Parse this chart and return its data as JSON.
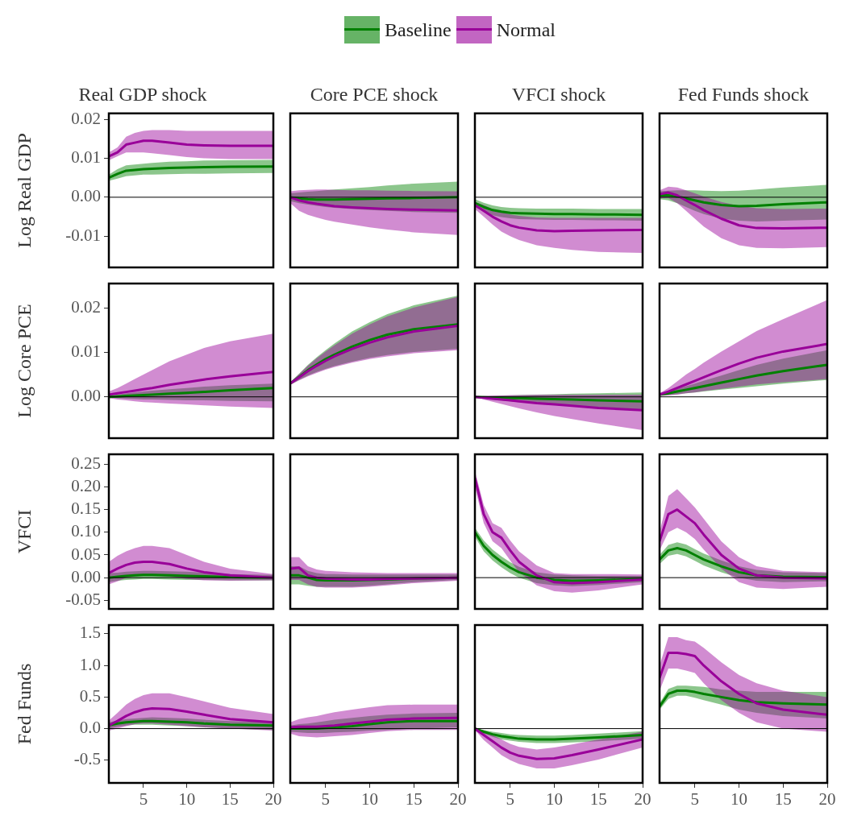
{
  "chart_data": [
    {
      "type": "line",
      "title": "Real GDP shock",
      "ylabel": "Log Real GDP",
      "legend": "top",
      "tick_labels": "y",
      "x": [
        1,
        2,
        3,
        4,
        5,
        6,
        8,
        10,
        12,
        15,
        20
      ],
      "xlim": [
        1,
        20
      ],
      "ylim": [
        -0.018,
        0.0215
      ],
      "yticks": [
        0.02,
        0.01,
        {
          "value": 0,
          "label": "0.00"
        },
        -0.01
      ],
      "ref_lines": [
        {
          "axis": "y",
          "value": 0
        }
      ],
      "marker": "none",
      "series": [
        {
          "name": "Baseline",
          "color": "#008000",
          "values": [
            0.005,
            0.006,
            0.0068,
            0.007,
            0.0072,
            0.0073,
            0.0075,
            0.0076,
            0.0077,
            0.0078,
            0.0079
          ],
          "lower": [
            0.0042,
            0.0048,
            0.0054,
            0.0056,
            0.0058,
            0.0058,
            0.0059,
            0.006,
            0.006,
            0.0061,
            0.0062
          ],
          "upper": [
            0.0058,
            0.0072,
            0.0082,
            0.0084,
            0.0086,
            0.0088,
            0.0091,
            0.0092,
            0.0094,
            0.0095,
            0.0096
          ]
        },
        {
          "name": "Normal",
          "color": "#990099",
          "values": [
            0.0105,
            0.0115,
            0.0135,
            0.014,
            0.0145,
            0.0145,
            0.014,
            0.0135,
            0.0133,
            0.0132,
            0.0132
          ],
          "lower": [
            0.0095,
            0.0105,
            0.0115,
            0.0115,
            0.0115,
            0.0113,
            0.0108,
            0.0103,
            0.01,
            0.0098,
            0.0098
          ],
          "upper": [
            0.0115,
            0.0128,
            0.0155,
            0.0165,
            0.017,
            0.0172,
            0.0172,
            0.017,
            0.017,
            0.017,
            0.017
          ]
        }
      ]
    },
    {
      "type": "line",
      "title": "Core PCE shock",
      "tick_labels": false,
      "x": [
        1,
        2,
        3,
        4,
        5,
        6,
        8,
        10,
        12,
        15,
        20
      ],
      "xlim": [
        1,
        20
      ],
      "ylim": [
        -0.018,
        0.0215
      ],
      "ref_lines": [
        {
          "axis": "y",
          "value": 0
        }
      ],
      "marker": "none",
      "series": [
        {
          "color": "#008000",
          "values": [
            0,
            -0.0003,
            -0.0005,
            -0.0006,
            -0.0006,
            -0.0006,
            -0.0005,
            -0.0004,
            -0.0003,
            -0.0002,
            0
          ],
          "lower": [
            -0.001,
            -0.0015,
            -0.0019,
            -0.0022,
            -0.0025,
            -0.0027,
            -0.003,
            -0.0033,
            -0.0035,
            -0.0038,
            -0.004
          ],
          "upper": [
            0.001,
            0.0012,
            0.0014,
            0.0016,
            0.0018,
            0.002,
            0.0023,
            0.0026,
            0.003,
            0.0035,
            0.004
          ]
        },
        {
          "color": "#990099",
          "values": [
            0,
            -0.0008,
            -0.0013,
            -0.0017,
            -0.002,
            -0.0023,
            -0.0026,
            -0.0028,
            -0.003,
            -0.0032,
            -0.0034
          ],
          "lower": [
            -0.0015,
            -0.0035,
            -0.0045,
            -0.0052,
            -0.0058,
            -0.0063,
            -0.007,
            -0.0077,
            -0.0083,
            -0.009,
            -0.0097
          ],
          "upper": [
            0.0015,
            0.0018,
            0.0019,
            0.002,
            0.002,
            0.0019,
            0.0018,
            0.0018,
            0.0017,
            0.0016,
            0.0015
          ]
        }
      ]
    },
    {
      "type": "line",
      "title": "VFCI shock",
      "tick_labels": false,
      "x": [
        1,
        2,
        3,
        4,
        5,
        6,
        8,
        10,
        12,
        15,
        20
      ],
      "xlim": [
        1,
        20
      ],
      "ylim": [
        -0.018,
        0.0215
      ],
      "ref_lines": [
        {
          "axis": "y",
          "value": 0
        }
      ],
      "marker": "none",
      "series": [
        {
          "color": "#008000",
          "values": [
            -0.0015,
            -0.0025,
            -0.0033,
            -0.0037,
            -0.004,
            -0.0041,
            -0.0042,
            -0.0043,
            -0.0043,
            -0.0044,
            -0.0045
          ],
          "lower": [
            -0.0025,
            -0.0037,
            -0.0046,
            -0.0051,
            -0.0054,
            -0.0056,
            -0.0057,
            -0.0058,
            -0.0058,
            -0.0059,
            -0.006
          ],
          "upper": [
            -0.0005,
            -0.0014,
            -0.0021,
            -0.0025,
            -0.0027,
            -0.0028,
            -0.0029,
            -0.0029,
            -0.0029,
            -0.003,
            -0.003
          ]
        },
        {
          "color": "#990099",
          "values": [
            -0.002,
            -0.0035,
            -0.005,
            -0.0062,
            -0.0072,
            -0.0078,
            -0.0085,
            -0.0087,
            -0.0086,
            -0.0085,
            -0.0084
          ],
          "lower": [
            -0.003,
            -0.005,
            -0.007,
            -0.0088,
            -0.01,
            -0.011,
            -0.0123,
            -0.013,
            -0.0135,
            -0.014,
            -0.0143
          ],
          "upper": [
            -0.0012,
            -0.002,
            -0.003,
            -0.0038,
            -0.0044,
            -0.0048,
            -0.0052,
            -0.0053,
            -0.0053,
            -0.0053,
            -0.0053
          ]
        }
      ]
    },
    {
      "type": "line",
      "title": "Fed Funds shock",
      "tick_labels": false,
      "x": [
        1,
        2,
        3,
        4,
        5,
        6,
        8,
        10,
        12,
        15,
        20
      ],
      "xlim": [
        1,
        20
      ],
      "ylim": [
        -0.018,
        0.0215
      ],
      "ref_lines": [
        {
          "axis": "y",
          "value": 0
        }
      ],
      "marker": "none",
      "series": [
        {
          "color": "#008000",
          "values": [
            0.0005,
            0.0005,
            0.0002,
            -0.0003,
            -0.0008,
            -0.0013,
            -0.002,
            -0.0023,
            -0.0022,
            -0.0018,
            -0.0013
          ],
          "lower": [
            -0.0005,
            -0.0008,
            -0.0015,
            -0.0025,
            -0.0035,
            -0.0043,
            -0.0055,
            -0.006,
            -0.0062,
            -0.006,
            -0.0057
          ],
          "upper": [
            0.0015,
            0.0017,
            0.0018,
            0.0018,
            0.0018,
            0.0017,
            0.0016,
            0.0017,
            0.002,
            0.0025,
            0.0032
          ]
        },
        {
          "color": "#990099",
          "values": [
            0.0008,
            0.0012,
            0.0005,
            -0.0008,
            -0.002,
            -0.0033,
            -0.0055,
            -0.0072,
            -0.0079,
            -0.008,
            -0.0078
          ],
          "lower": [
            -0.0003,
            -0.0002,
            -0.0015,
            -0.0035,
            -0.0055,
            -0.0075,
            -0.0105,
            -0.0123,
            -0.013,
            -0.0131,
            -0.0128
          ],
          "upper": [
            0.0018,
            0.0027,
            0.0025,
            0.0018,
            0.001,
            0.0002,
            -0.0012,
            -0.0022,
            -0.0028,
            -0.003,
            -0.0029
          ]
        }
      ]
    },
    {
      "type": "line",
      "ylabel": "Log Core PCE",
      "tick_labels": "y",
      "x": [
        1,
        2,
        3,
        4,
        5,
        6,
        8,
        10,
        12,
        15,
        20
      ],
      "xlim": [
        1,
        20
      ],
      "ylim": [
        -0.0093,
        0.0255
      ],
      "yticks": [
        0.02,
        0.01,
        {
          "value": 0,
          "label": "0.00"
        }
      ],
      "ref_lines": [
        {
          "axis": "y",
          "value": 0
        }
      ],
      "marker": "none",
      "series": [
        {
          "color": "#008000",
          "values": [
            0,
            0.0001,
            0.0002,
            0.0003,
            0.0004,
            0.0005,
            0.0007,
            0.0009,
            0.0011,
            0.0015,
            0.002
          ],
          "lower": [
            -0.0002,
            -0.0003,
            -0.0004,
            -0.0005,
            -0.0006,
            -0.0006,
            -0.0007,
            -0.0008,
            -0.0008,
            -0.0009,
            -0.001
          ],
          "upper": [
            0.0002,
            0.0005,
            0.0008,
            0.001,
            0.0012,
            0.0014,
            0.0017,
            0.002,
            0.0023,
            0.0026,
            0.003
          ]
        },
        {
          "color": "#990099",
          "values": [
            0.0005,
            0.0008,
            0.0011,
            0.0014,
            0.0017,
            0.002,
            0.0027,
            0.0033,
            0.0039,
            0.0046,
            0.0056
          ],
          "lower": [
            -0.0003,
            -0.0006,
            -0.0008,
            -0.001,
            -0.0012,
            -0.0013,
            -0.0015,
            -0.0017,
            -0.0019,
            -0.0022,
            -0.0025
          ],
          "upper": [
            0.0012,
            0.002,
            0.003,
            0.004,
            0.005,
            0.006,
            0.008,
            0.0095,
            0.011,
            0.0125,
            0.0142
          ]
        }
      ]
    },
    {
      "type": "line",
      "tick_labels": false,
      "x": [
        1,
        2,
        3,
        4,
        5,
        6,
        8,
        10,
        12,
        15,
        20
      ],
      "xlim": [
        1,
        20
      ],
      "ylim": [
        -0.0093,
        0.0255
      ],
      "ref_lines": [
        {
          "axis": "y",
          "value": 0
        }
      ],
      "marker": "none",
      "series": [
        {
          "color": "#008000",
          "values": [
            0.003,
            0.0045,
            0.006,
            0.0073,
            0.0085,
            0.0095,
            0.0113,
            0.0128,
            0.014,
            0.0152,
            0.0163
          ],
          "lower": [
            0.0027,
            0.0038,
            0.0048,
            0.0056,
            0.0063,
            0.0069,
            0.0079,
            0.0088,
            0.0094,
            0.0101,
            0.0108
          ],
          "upper": [
            0.0033,
            0.0052,
            0.0072,
            0.0089,
            0.0105,
            0.012,
            0.0147,
            0.0168,
            0.0186,
            0.0206,
            0.0228
          ]
        },
        {
          "color": "#990099",
          "values": [
            0.003,
            0.0044,
            0.0058,
            0.007,
            0.0081,
            0.0091,
            0.0108,
            0.0122,
            0.0134,
            0.0147,
            0.016
          ],
          "lower": [
            0.0027,
            0.0037,
            0.0046,
            0.0054,
            0.0061,
            0.0067,
            0.0077,
            0.0085,
            0.0091,
            0.0098,
            0.0105
          ],
          "upper": [
            0.0033,
            0.0051,
            0.007,
            0.0087,
            0.0102,
            0.0116,
            0.0142,
            0.0163,
            0.0181,
            0.0201,
            0.0225
          ]
        }
      ]
    },
    {
      "type": "line",
      "tick_labels": false,
      "x": [
        1,
        2,
        3,
        4,
        5,
        6,
        8,
        10,
        12,
        15,
        20
      ],
      "xlim": [
        1,
        20
      ],
      "ylim": [
        -0.0093,
        0.0255
      ],
      "ref_lines": [
        {
          "axis": "y",
          "value": 0
        }
      ],
      "marker": "none",
      "series": [
        {
          "color": "#008000",
          "values": [
            0,
            -0.0001,
            -0.0002,
            -0.0002,
            -0.0003,
            -0.0003,
            -0.0004,
            -0.0005,
            -0.0006,
            -0.0008,
            -0.001
          ],
          "lower": [
            -0.0002,
            -0.0004,
            -0.0006,
            -0.0008,
            -0.001,
            -0.0012,
            -0.0015,
            -0.0018,
            -0.0021,
            -0.0025,
            -0.003
          ],
          "upper": [
            0.0002,
            0.0002,
            0.0002,
            0.0003,
            0.0003,
            0.0004,
            0.0005,
            0.0006,
            0.0007,
            0.0008,
            0.001
          ]
        },
        {
          "color": "#990099",
          "values": [
            0,
            -0.0002,
            -0.0004,
            -0.0006,
            -0.0008,
            -0.001,
            -0.0014,
            -0.0017,
            -0.002,
            -0.0025,
            -0.003
          ],
          "lower": [
            0,
            -0.0006,
            -0.0011,
            -0.0016,
            -0.0021,
            -0.0026,
            -0.0035,
            -0.0043,
            -0.005,
            -0.006,
            -0.0075
          ],
          "upper": [
            0,
            0.0002,
            0.0003,
            0.0003,
            0.0004,
            0.0004,
            0.0005,
            0.0005,
            0.0005,
            0.0005,
            0.0005
          ]
        }
      ]
    },
    {
      "type": "line",
      "tick_labels": false,
      "x": [
        1,
        2,
        3,
        4,
        5,
        6,
        8,
        10,
        12,
        15,
        20
      ],
      "xlim": [
        1,
        20
      ],
      "ylim": [
        -0.0093,
        0.0255
      ],
      "ref_lines": [
        {
          "axis": "y",
          "value": 0
        }
      ],
      "marker": "none",
      "series": [
        {
          "color": "#008000",
          "values": [
            0.0005,
            0.0008,
            0.0012,
            0.0016,
            0.002,
            0.0024,
            0.0032,
            0.004,
            0.0048,
            0.0058,
            0.0072
          ],
          "lower": [
            0.0003,
            0.0004,
            0.0006,
            0.0008,
            0.001,
            0.0012,
            0.0016,
            0.002,
            0.0024,
            0.003,
            0.0038
          ],
          "upper": [
            0.0007,
            0.0012,
            0.0018,
            0.0024,
            0.003,
            0.0036,
            0.0048,
            0.006,
            0.0072,
            0.0086,
            0.0105
          ]
        },
        {
          "color": "#990099",
          "values": [
            0.0005,
            0.0012,
            0.002,
            0.0028,
            0.0036,
            0.0044,
            0.006,
            0.0075,
            0.0088,
            0.0102,
            0.0119
          ],
          "lower": [
            0.0002,
            0.0003,
            0.0005,
            0.0008,
            0.001,
            0.0013,
            0.0018,
            0.0023,
            0.0028,
            0.0033,
            0.004
          ],
          "upper": [
            0.0008,
            0.002,
            0.0035,
            0.005,
            0.0063,
            0.0077,
            0.0102,
            0.0125,
            0.0148,
            0.0175,
            0.0218
          ]
        }
      ]
    },
    {
      "type": "line",
      "ylabel": "VFCI",
      "tick_labels": "y",
      "x": [
        1,
        2,
        3,
        4,
        5,
        6,
        8,
        10,
        12,
        15,
        20
      ],
      "xlim": [
        1,
        20
      ],
      "ylim": [
        -0.069,
        0.272
      ],
      "yticks": [
        0.25,
        {
          "value": 0.2,
          "label": "0.20"
        },
        0.15,
        {
          "value": 0.1,
          "label": "0.10"
        },
        0.05,
        {
          "value": 0,
          "label": "0.00"
        },
        -0.05
      ],
      "ref_lines": [
        {
          "axis": "y",
          "value": 0
        }
      ],
      "marker": "none",
      "series": [
        {
          "color": "#008000",
          "values": [
            0,
            0.002,
            0.004,
            0.005,
            0.006,
            0.006,
            0.005,
            0.004,
            0.003,
            0.001,
            0
          ],
          "lower": [
            -0.01,
            -0.007,
            -0.005,
            -0.004,
            -0.003,
            -0.003,
            -0.004,
            -0.005,
            -0.005,
            -0.006,
            -0.006
          ],
          "upper": [
            0.01,
            0.011,
            0.013,
            0.014,
            0.015,
            0.015,
            0.014,
            0.013,
            0.011,
            0.008,
            0.006
          ]
        },
        {
          "color": "#990099",
          "values": [
            0.01,
            0.02,
            0.028,
            0.033,
            0.035,
            0.035,
            0.03,
            0.02,
            0.012,
            0.005,
            0
          ],
          "lower": [
            -0.015,
            -0.008,
            0,
            0.003,
            0.005,
            0.005,
            0.002,
            -0.003,
            -0.006,
            -0.007,
            -0.006
          ],
          "upper": [
            0.035,
            0.048,
            0.058,
            0.065,
            0.07,
            0.07,
            0.065,
            0.05,
            0.035,
            0.02,
            0.008
          ]
        }
      ]
    },
    {
      "type": "line",
      "tick_labels": false,
      "x": [
        1,
        2,
        3,
        4,
        5,
        6,
        8,
        10,
        12,
        15,
        20
      ],
      "xlim": [
        1,
        20
      ],
      "ylim": [
        -0.069,
        0.272
      ],
      "ref_lines": [
        {
          "axis": "y",
          "value": 0
        }
      ],
      "marker": "none",
      "series": [
        {
          "color": "#008000",
          "values": [
            0.005,
            0.005,
            0,
            -0.005,
            -0.006,
            -0.006,
            -0.006,
            -0.005,
            -0.004,
            -0.002,
            0
          ],
          "lower": [
            -0.015,
            -0.015,
            -0.018,
            -0.02,
            -0.02,
            -0.02,
            -0.02,
            -0.018,
            -0.015,
            -0.01,
            -0.005
          ],
          "upper": [
            0.025,
            0.025,
            0.015,
            0.01,
            0.008,
            0.008,
            0.007,
            0.007,
            0.007,
            0.007,
            0.007
          ]
        },
        {
          "color": "#990099",
          "values": [
            0.02,
            0.022,
            0.005,
            0,
            -0.002,
            -0.003,
            -0.004,
            -0.004,
            -0.003,
            -0.002,
            0
          ],
          "lower": [
            -0.005,
            -0.005,
            -0.015,
            -0.02,
            -0.022,
            -0.022,
            -0.022,
            -0.02,
            -0.017,
            -0.012,
            -0.007
          ],
          "upper": [
            0.045,
            0.045,
            0.025,
            0.018,
            0.015,
            0.014,
            0.012,
            0.011,
            0.01,
            0.01,
            0.01
          ]
        }
      ]
    },
    {
      "type": "line",
      "tick_labels": false,
      "x": [
        1,
        2,
        3,
        4,
        5,
        6,
        8,
        10,
        12,
        15,
        20
      ],
      "xlim": [
        1,
        20
      ],
      "ylim": [
        -0.069,
        0.272
      ],
      "ref_lines": [
        {
          "axis": "y",
          "value": 0
        }
      ],
      "marker": "none",
      "series": [
        {
          "color": "#008000",
          "values": [
            0.1,
            0.07,
            0.05,
            0.035,
            0.022,
            0.012,
            0,
            -0.005,
            -0.007,
            -0.006,
            -0.003
          ],
          "lower": [
            0.09,
            0.058,
            0.038,
            0.023,
            0.01,
            0,
            -0.012,
            -0.017,
            -0.019,
            -0.016,
            -0.01
          ],
          "upper": [
            0.11,
            0.082,
            0.062,
            0.047,
            0.034,
            0.024,
            0.012,
            0.007,
            0.005,
            0.004,
            0.004
          ]
        },
        {
          "color": "#990099",
          "values": [
            0.22,
            0.14,
            0.1,
            0.088,
            0.06,
            0.035,
            0.005,
            -0.01,
            -0.012,
            -0.01,
            -0.004
          ],
          "lower": [
            0.2,
            0.12,
            0.08,
            0.065,
            0.038,
            0.012,
            -0.017,
            -0.03,
            -0.033,
            -0.028,
            -0.015
          ],
          "upper": [
            0.235,
            0.16,
            0.12,
            0.11,
            0.082,
            0.058,
            0.027,
            0.01,
            0.008,
            0.008,
            0.007
          ]
        }
      ]
    },
    {
      "type": "line",
      "tick_labels": false,
      "x": [
        1,
        2,
        3,
        4,
        5,
        6,
        8,
        10,
        12,
        15,
        20
      ],
      "xlim": [
        1,
        20
      ],
      "ylim": [
        -0.069,
        0.272
      ],
      "ref_lines": [
        {
          "axis": "y",
          "value": 0
        }
      ],
      "marker": "none",
      "series": [
        {
          "color": "#008000",
          "values": [
            0.04,
            0.06,
            0.065,
            0.06,
            0.05,
            0.04,
            0.025,
            0.012,
            0.005,
            0.002,
            0.001
          ],
          "lower": [
            0.03,
            0.048,
            0.052,
            0.047,
            0.037,
            0.027,
            0.012,
            0,
            -0.007,
            -0.01,
            -0.008
          ],
          "upper": [
            0.05,
            0.072,
            0.078,
            0.073,
            0.063,
            0.053,
            0.038,
            0.025,
            0.017,
            0.012,
            0.01
          ]
        },
        {
          "color": "#990099",
          "values": [
            0.08,
            0.14,
            0.15,
            0.135,
            0.12,
            0.095,
            0.05,
            0.02,
            0.005,
            0,
            -0.002
          ],
          "lower": [
            0.06,
            0.1,
            0.11,
            0.1,
            0.085,
            0.062,
            0.02,
            -0.01,
            -0.022,
            -0.025,
            -0.02
          ],
          "upper": [
            0.1,
            0.18,
            0.195,
            0.175,
            0.155,
            0.13,
            0.08,
            0.045,
            0.025,
            0.015,
            0.012
          ]
        }
      ]
    },
    {
      "type": "line",
      "ylabel": "Fed Funds",
      "x": [
        1,
        2,
        3,
        4,
        5,
        6,
        8,
        10,
        12,
        15,
        20
      ],
      "xlim": [
        1,
        20
      ],
      "xticks": [
        5,
        10,
        15,
        20
      ],
      "ylim": [
        -0.86,
        1.64
      ],
      "yticks": [
        1.5,
        {
          "value": 1,
          "label": "1.0"
        },
        0.5,
        {
          "value": 0,
          "label": "0.0"
        },
        -0.5
      ],
      "ref_lines": [
        {
          "axis": "y",
          "value": 0
        }
      ],
      "marker": "none",
      "series": [
        {
          "color": "#008000",
          "values": [
            0.05,
            0.08,
            0.1,
            0.11,
            0.12,
            0.12,
            0.11,
            0.1,
            0.08,
            0.06,
            0.05
          ],
          "lower": [
            0,
            0.03,
            0.05,
            0.06,
            0.06,
            0.06,
            0.05,
            0.04,
            0.02,
            0,
            -0.02
          ],
          "upper": [
            0.1,
            0.13,
            0.15,
            0.16,
            0.17,
            0.18,
            0.17,
            0.16,
            0.14,
            0.12,
            0.1
          ]
        },
        {
          "color": "#990099",
          "values": [
            0.05,
            0.12,
            0.2,
            0.26,
            0.3,
            0.32,
            0.31,
            0.27,
            0.22,
            0.15,
            0.1
          ],
          "lower": [
            -0.03,
            0,
            0.04,
            0.07,
            0.08,
            0.08,
            0.06,
            0.04,
            0.02,
            0,
            -0.03
          ],
          "upper": [
            0.13,
            0.25,
            0.38,
            0.47,
            0.53,
            0.56,
            0.56,
            0.5,
            0.43,
            0.33,
            0.23
          ]
        }
      ]
    },
    {
      "type": "line",
      "tick_labels": "x",
      "x": [
        1,
        2,
        3,
        4,
        5,
        6,
        8,
        10,
        12,
        15,
        20
      ],
      "xlim": [
        1,
        20
      ],
      "xticks": [
        5,
        10,
        15,
        20
      ],
      "ylim": [
        -0.86,
        1.64
      ],
      "ref_lines": [
        {
          "axis": "y",
          "value": 0
        }
      ],
      "marker": "none",
      "series": [
        {
          "color": "#008000",
          "values": [
            0,
            0,
            0,
            0,
            0.01,
            0.02,
            0.04,
            0.07,
            0.1,
            0.12,
            0.12
          ],
          "lower": [
            -0.05,
            -0.06,
            -0.07,
            -0.07,
            -0.07,
            -0.06,
            -0.05,
            -0.03,
            -0.02,
            0,
            0.02
          ],
          "upper": [
            0.05,
            0.07,
            0.08,
            0.1,
            0.12,
            0.14,
            0.17,
            0.2,
            0.22,
            0.24,
            0.25
          ]
        },
        {
          "color": "#990099",
          "values": [
            0.02,
            0.03,
            0.03,
            0.03,
            0.04,
            0.05,
            0.08,
            0.11,
            0.14,
            0.16,
            0.17
          ],
          "lower": [
            -0.08,
            -0.12,
            -0.13,
            -0.14,
            -0.13,
            -0.12,
            -0.1,
            -0.07,
            -0.04,
            -0.02,
            -0.02
          ],
          "upper": [
            0.1,
            0.15,
            0.18,
            0.2,
            0.23,
            0.26,
            0.3,
            0.34,
            0.37,
            0.38,
            0.38
          ]
        }
      ]
    },
    {
      "type": "line",
      "tick_labels": "x",
      "x": [
        1,
        2,
        3,
        4,
        5,
        6,
        8,
        10,
        12,
        15,
        20
      ],
      "xlim": [
        1,
        20
      ],
      "xticks": [
        5,
        10,
        15,
        20
      ],
      "ylim": [
        -0.86,
        1.64
      ],
      "ref_lines": [
        {
          "axis": "y",
          "value": 0
        }
      ],
      "marker": "none",
      "series": [
        {
          "color": "#008000",
          "values": [
            0,
            -0.05,
            -0.09,
            -0.12,
            -0.14,
            -0.16,
            -0.17,
            -0.17,
            -0.16,
            -0.14,
            -0.1
          ],
          "lower": [
            0,
            -0.08,
            -0.13,
            -0.17,
            -0.19,
            -0.21,
            -0.23,
            -0.23,
            -0.22,
            -0.2,
            -0.16
          ],
          "upper": [
            0,
            -0.02,
            -0.05,
            -0.07,
            -0.09,
            -0.1,
            -0.11,
            -0.11,
            -0.1,
            -0.08,
            -0.04
          ]
        },
        {
          "color": "#990099",
          "values": [
            0,
            -0.1,
            -0.2,
            -0.3,
            -0.38,
            -0.43,
            -0.48,
            -0.47,
            -0.42,
            -0.33,
            -0.17
          ],
          "lower": [
            -0.02,
            -0.18,
            -0.3,
            -0.42,
            -0.5,
            -0.56,
            -0.63,
            -0.63,
            -0.58,
            -0.49,
            -0.3
          ],
          "upper": [
            0.02,
            -0.03,
            -0.1,
            -0.17,
            -0.24,
            -0.29,
            -0.33,
            -0.3,
            -0.25,
            -0.17,
            -0.05
          ]
        }
      ]
    },
    {
      "type": "line",
      "tick_labels": "x",
      "x": [
        1,
        2,
        3,
        4,
        5,
        6,
        8,
        10,
        12,
        15,
        20
      ],
      "xlim": [
        1,
        20
      ],
      "xticks": [
        5,
        10,
        15,
        20
      ],
      "ylim": [
        -0.86,
        1.64
      ],
      "ref_lines": [
        {
          "axis": "y",
          "value": 0
        }
      ],
      "marker": "none",
      "series": [
        {
          "color": "#008000",
          "values": [
            0.35,
            0.55,
            0.6,
            0.6,
            0.58,
            0.55,
            0.5,
            0.45,
            0.42,
            0.4,
            0.38
          ],
          "lower": [
            0.3,
            0.47,
            0.52,
            0.52,
            0.49,
            0.45,
            0.38,
            0.3,
            0.25,
            0.2,
            0.16
          ],
          "upper": [
            0.4,
            0.63,
            0.68,
            0.68,
            0.67,
            0.66,
            0.62,
            0.6,
            0.58,
            0.58,
            0.58
          ]
        },
        {
          "color": "#990099",
          "values": [
            0.8,
            1.2,
            1.2,
            1.18,
            1.15,
            1,
            0.75,
            0.55,
            0.4,
            0.3,
            0.22
          ],
          "lower": [
            0.6,
            0.95,
            0.95,
            0.92,
            0.88,
            0.72,
            0.45,
            0.25,
            0.1,
            0,
            -0.05
          ],
          "upper": [
            1,
            1.45,
            1.45,
            1.4,
            1.38,
            1.28,
            1.05,
            0.85,
            0.72,
            0.6,
            0.5
          ]
        }
      ]
    }
  ]
}
